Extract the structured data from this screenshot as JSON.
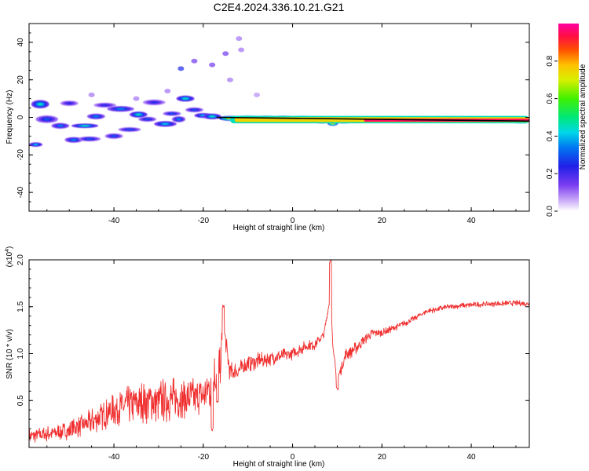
{
  "title": "C2E4.2024.336.10.21.G21",
  "colors": {
    "snr_line": "#f03030",
    "axis": "#000000",
    "trend": "#000000"
  },
  "chart_data": [
    {
      "type": "heatmap",
      "name": "spectrogram",
      "xlabel": "Height of straight line (km)",
      "ylabel": "Frequency (Hz)",
      "xlim": [
        -59,
        53
      ],
      "ylim": [
        -50,
        50
      ],
      "xticks": [
        "-40",
        "-20",
        "0",
        "20",
        "40"
      ],
      "yticks": [
        "40",
        "20",
        "0",
        "-20",
        "-40"
      ],
      "trend_line": {
        "x": [
          -17,
          53
        ],
        "y": [
          0,
          -2
        ]
      },
      "blobs": [
        {
          "x": -57.5,
          "y": -14.5,
          "w": 1.5,
          "h": 1.2,
          "a": 0.4
        },
        {
          "x": -56.5,
          "y": 7.0,
          "w": 2.0,
          "h": 2.2,
          "a": 0.45
        },
        {
          "x": -55.0,
          "y": -1.0,
          "w": 2.5,
          "h": 2.0,
          "a": 0.3
        },
        {
          "x": -52.0,
          "y": -4.5,
          "w": 2.0,
          "h": 1.5,
          "a": 0.35
        },
        {
          "x": -50.0,
          "y": 7.5,
          "w": 2.0,
          "h": 1.4,
          "a": 0.25
        },
        {
          "x": -49.0,
          "y": -12.0,
          "w": 2.0,
          "h": 1.5,
          "a": 0.35
        },
        {
          "x": -46.5,
          "y": -4.5,
          "w": 3.0,
          "h": 1.2,
          "a": 0.45
        },
        {
          "x": -45.5,
          "y": -11.5,
          "w": 2.5,
          "h": 1.3,
          "a": 0.3
        },
        {
          "x": -44.0,
          "y": 0.5,
          "w": 2.0,
          "h": 1.5,
          "a": 0.35
        },
        {
          "x": -42.0,
          "y": 6.5,
          "w": 2.5,
          "h": 1.3,
          "a": 0.25
        },
        {
          "x": -40.0,
          "y": -10.0,
          "w": 2.0,
          "h": 1.4,
          "a": 0.3
        },
        {
          "x": -38.5,
          "y": 4.5,
          "w": 3.0,
          "h": 1.5,
          "a": 0.35
        },
        {
          "x": -36.5,
          "y": -6.5,
          "w": 2.5,
          "h": 1.2,
          "a": 0.3
        },
        {
          "x": -34.5,
          "y": 1.5,
          "w": 2.0,
          "h": 1.6,
          "a": 0.45
        },
        {
          "x": -32.5,
          "y": -1.0,
          "w": 2.0,
          "h": 1.3,
          "a": 0.3
        },
        {
          "x": -31.0,
          "y": 8.0,
          "w": 2.5,
          "h": 1.5,
          "a": 0.25
        },
        {
          "x": -28.5,
          "y": -3.5,
          "w": 2.5,
          "h": 1.5,
          "a": 0.4
        },
        {
          "x": -27.0,
          "y": 2.0,
          "w": 2.0,
          "h": 1.2,
          "a": 0.3
        },
        {
          "x": -25.5,
          "y": -1.0,
          "w": 1.5,
          "h": 1.6,
          "a": 0.35
        },
        {
          "x": -24.0,
          "y": 10.0,
          "w": 2.0,
          "h": 1.6,
          "a": 0.45
        },
        {
          "x": -22.0,
          "y": 4.0,
          "w": 2.0,
          "h": 1.3,
          "a": 0.3
        },
        {
          "x": -20.0,
          "y": 1.0,
          "w": 2.0,
          "h": 1.3,
          "a": 0.4
        },
        {
          "x": -18.0,
          "y": 0.5,
          "w": 2.0,
          "h": 1.5,
          "a": 0.45
        },
        {
          "x": -14.0,
          "y": -0.5,
          "w": 2.5,
          "h": 1.3,
          "a": 0.7
        },
        {
          "x": -10.0,
          "y": -0.5,
          "w": 3.5,
          "h": 1.4,
          "a": 0.95
        },
        {
          "x": -6.0,
          "y": -0.5,
          "w": 3.0,
          "h": 1.3,
          "a": 0.8
        },
        {
          "x": -2.0,
          "y": -0.5,
          "w": 2.5,
          "h": 1.3,
          "a": 0.7
        },
        {
          "x": 2.0,
          "y": -0.5,
          "w": 2.5,
          "h": 1.2,
          "a": 0.95
        },
        {
          "x": 6.5,
          "y": -2.0,
          "w": 1.5,
          "h": 1.2,
          "a": 0.6
        },
        {
          "x": 9.0,
          "y": -3.0,
          "w": 1.2,
          "h": 1.5,
          "a": 0.8
        },
        {
          "x": 11.5,
          "y": -2.0,
          "w": 2.0,
          "h": 1.2,
          "a": 0.9
        },
        {
          "x": 14.5,
          "y": -1.5,
          "w": 2.0,
          "h": 1.3,
          "a": 0.6
        },
        {
          "x": 20.0,
          "y": -1.0,
          "w": 3.0,
          "h": 1.2,
          "a": 0.85
        },
        {
          "x": 28.0,
          "y": -1.0,
          "w": 3.0,
          "h": 1.2,
          "a": 0.9
        },
        {
          "x": 36.0,
          "y": -1.5,
          "w": 3.0,
          "h": 1.2,
          "a": 0.9
        },
        {
          "x": 44.0,
          "y": -1.5,
          "w": 3.0,
          "h": 1.2,
          "a": 0.9
        },
        {
          "x": 51.0,
          "y": -2.0,
          "w": 2.0,
          "h": 1.2,
          "a": 0.9
        }
      ],
      "bands": [
        {
          "x0": -14,
          "x1": 53,
          "y": -1.2,
          "h": 4.0,
          "a": 0.45
        },
        {
          "x0": -13,
          "x1": 53,
          "y": -1.2,
          "h": 2.6,
          "a": 0.75
        },
        {
          "x0": 16,
          "x1": 53,
          "y": -1.5,
          "h": 1.6,
          "a": 0.95
        }
      ],
      "sparse_points": [
        {
          "x": -25.0,
          "y": 26.0,
          "a": 0.25
        },
        {
          "x": -22.0,
          "y": 30.0,
          "a": 0.15
        },
        {
          "x": -18.0,
          "y": 28.0,
          "a": 0.15
        },
        {
          "x": -15.0,
          "y": 34.0,
          "a": 0.15
        },
        {
          "x": -12.0,
          "y": 42.0,
          "a": 0.1
        },
        {
          "x": -11.5,
          "y": 36.0,
          "a": 0.1
        },
        {
          "x": -14.0,
          "y": 20.0,
          "a": 0.1
        },
        {
          "x": -8.0,
          "y": 12.0,
          "a": 0.08
        },
        {
          "x": -28.0,
          "y": 14.0,
          "a": 0.1
        },
        {
          "x": -35.0,
          "y": 10.0,
          "a": 0.1
        },
        {
          "x": -45.0,
          "y": 12.0,
          "a": 0.1
        }
      ]
    },
    {
      "type": "colorbar",
      "name": "spectral-amplitude-colorbar",
      "label": "Normalized spectral amplitude",
      "range": [
        0.0,
        1.0
      ],
      "ticks": [
        "0.0",
        "0.2",
        "0.4",
        "0.6",
        "0.8"
      ]
    },
    {
      "type": "line",
      "name": "snr",
      "xlabel": "Height of straight line (km)",
      "ylabel": "SNR (10 * v/v)",
      "exponent": "(x10",
      "exponent_power": "4",
      "exponent_close": ")",
      "xlim": [
        -59,
        53
      ],
      "ylim": [
        0,
        2.0
      ],
      "xticks": [
        "-40",
        "-20",
        "0",
        "20",
        "40"
      ],
      "yticks": [
        "2.0",
        "1.5",
        "1.0",
        "0.5"
      ],
      "anchors": {
        "x": [
          -59,
          -50,
          -45,
          -40,
          -35,
          -30,
          -25,
          -20,
          -18,
          -16,
          -15.5,
          -14,
          -12,
          -10,
          -5,
          0,
          3,
          5,
          7,
          8.5,
          9,
          10,
          12,
          14,
          16,
          18,
          20,
          25,
          30,
          35,
          40,
          45,
          50,
          53
        ],
        "y": [
          0.12,
          0.18,
          0.28,
          0.4,
          0.48,
          0.5,
          0.52,
          0.55,
          0.68,
          0.95,
          1.3,
          0.8,
          0.82,
          0.9,
          0.95,
          1.0,
          1.08,
          1.1,
          1.2,
          1.62,
          1.1,
          0.72,
          1.0,
          1.05,
          1.15,
          1.22,
          1.22,
          1.32,
          1.45,
          1.5,
          1.52,
          1.53,
          1.54,
          1.53
        ]
      },
      "amplitude": {
        "x": [
          -59,
          -50,
          -40,
          -33,
          -28,
          -24,
          -20,
          -18,
          -16,
          -15,
          -14,
          -10,
          -5,
          0,
          5,
          7,
          9,
          10,
          12,
          14,
          18,
          22,
          28,
          35,
          45,
          53
        ],
        "y": [
          0.08,
          0.1,
          0.18,
          0.24,
          0.25,
          0.22,
          0.2,
          0.3,
          0.25,
          0.1,
          0.12,
          0.1,
          0.08,
          0.07,
          0.06,
          0.05,
          0.02,
          0.06,
          0.08,
          0.07,
          0.05,
          0.04,
          0.03,
          0.03,
          0.03,
          0.03
        ]
      },
      "peaks": [
        {
          "x": -15.5,
          "y": 1.5
        },
        {
          "x": -16.8,
          "y": 0.48
        },
        {
          "x": 8.5,
          "y": 1.99
        },
        {
          "x": 10.0,
          "y": 0.62
        },
        {
          "x": -18.0,
          "y": 0.2
        }
      ]
    }
  ]
}
